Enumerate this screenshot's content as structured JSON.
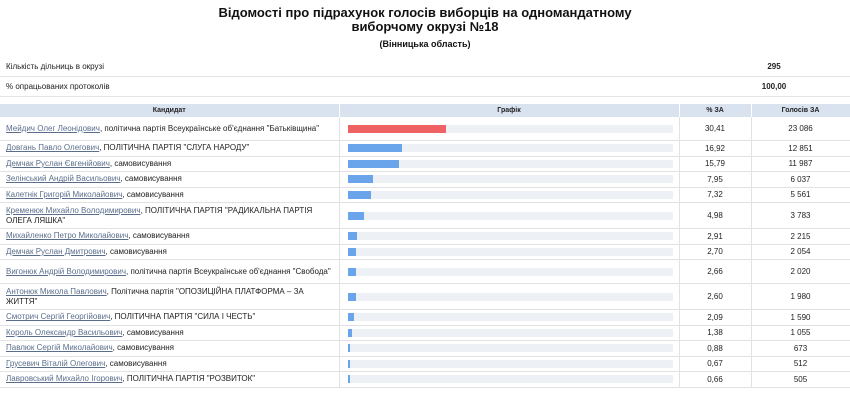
{
  "title": {
    "line1": "Відомості про підрахунок голосів виборців на одномандатному",
    "line2": "виборчому окрузі №18",
    "region": "(Вінницька область)"
  },
  "summary": [
    {
      "label": "Кількість дільниць в окрузі",
      "value": "295"
    },
    {
      "label": "% опрацьованих протоколів",
      "value": "100,00"
    }
  ],
  "headers": {
    "candidate": "Кандидат",
    "graph": "Графік",
    "pct": "% ЗА",
    "votes": "Голосів ЗА"
  },
  "colors": {
    "leader": "#ef6264",
    "bar": "#6aa4ea",
    "track": "#edf1f6",
    "header": "#d9e3f0"
  },
  "max_pct": 100,
  "candidates": [
    {
      "name": "Мейдич Олег Леонідович",
      "party": ", політична партія Всеукраїнське об'єднання \"Батьківщина\"",
      "pct": "30,41",
      "pct_num": 30.41,
      "votes": "23 086"
    },
    {
      "name": "Довгань Павло Олегович",
      "party": ", ПОЛІТИЧНА ПАРТІЯ \"СЛУГА НАРОДУ\"",
      "pct": "16,92",
      "pct_num": 16.92,
      "votes": "12 851"
    },
    {
      "name": "Демчак Руслан Євгенійович",
      "party": ", самовисування",
      "pct": "15,79",
      "pct_num": 15.79,
      "votes": "11 987"
    },
    {
      "name": "Зелінський Андрій Васильович",
      "party": ", самовисування",
      "pct": "7,95",
      "pct_num": 7.95,
      "votes": "6 037"
    },
    {
      "name": "Калетнік Григорій Миколайович",
      "party": ", самовисування",
      "pct": "7,32",
      "pct_num": 7.32,
      "votes": "5 561"
    },
    {
      "name": "Кременюк Михайло Володимирович",
      "party": ", ПОЛІТИЧНА ПАРТІЯ \"РАДИКАЛЬНА ПАРТІЯ ОЛЕГА ЛЯШКА\"",
      "pct": "4,98",
      "pct_num": 4.98,
      "votes": "3 783"
    },
    {
      "name": "Михайленко Петро Миколайович",
      "party": ", самовисування",
      "pct": "2,91",
      "pct_num": 2.91,
      "votes": "2 215"
    },
    {
      "name": "Демчак Руслан Дмитрович",
      "party": ", самовисування",
      "pct": "2,70",
      "pct_num": 2.7,
      "votes": "2 054"
    },
    {
      "name": "Вигонюк Андрій Володимирович",
      "party": ", політична партія Всеукраїнське об'єднання \"Свобода\"",
      "pct": "2,66",
      "pct_num": 2.66,
      "votes": "2 020"
    },
    {
      "name": "Антонюк Микола Павлович",
      "party": ", Політична партія \"ОПОЗИЦІЙНА ПЛАТФОРМА – ЗА ЖИТТЯ\"",
      "pct": "2,60",
      "pct_num": 2.6,
      "votes": "1 980"
    },
    {
      "name": "Смотрич Сергій Георгійович",
      "party": ", ПОЛІТИЧНА ПАРТІЯ \"СИЛА І ЧЕСТЬ\"",
      "pct": "2,09",
      "pct_num": 2.09,
      "votes": "1 590"
    },
    {
      "name": "Король Олександр Васильович",
      "party": ", самовисування",
      "pct": "1,38",
      "pct_num": 1.38,
      "votes": "1 055"
    },
    {
      "name": "Павлюк Сергій Миколайович",
      "party": ", самовисування",
      "pct": "0,88",
      "pct_num": 0.88,
      "votes": "673"
    },
    {
      "name": "Грусевич Віталій Олегович",
      "party": ", самовисування",
      "pct": "0,67",
      "pct_num": 0.67,
      "votes": "512"
    },
    {
      "name": "Лавровський Михайло Ігорович",
      "party": ", ПОЛІТИЧНА ПАРТІЯ \"РОЗВИТОК\"",
      "pct": "0,66",
      "pct_num": 0.66,
      "votes": "505"
    }
  ]
}
